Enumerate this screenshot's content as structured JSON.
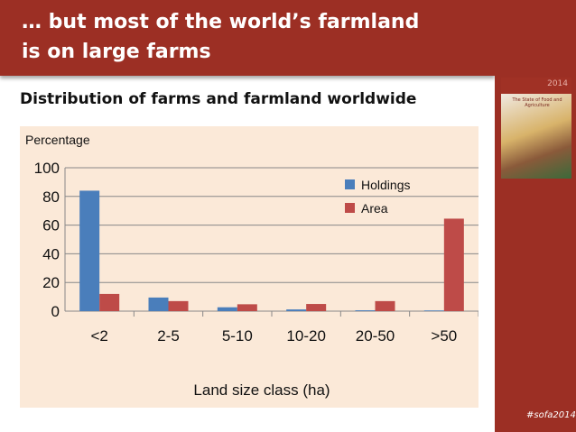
{
  "slide": {
    "title_line1": "… but most of the world’s farmland",
    "title_line2": "is on large farms",
    "subtitle": "Distribution of farms and farmland worldwide",
    "hashtag": "#sofa2014",
    "cover_year": "2014",
    "cover_title": "The State of Food and Agriculture"
  },
  "colors": {
    "header": "#9c2f24",
    "holdings": "#4a7ebb",
    "area": "#be4b48",
    "chart_bg": "#fbe9d8"
  },
  "chart_data": {
    "type": "bar",
    "title": "",
    "ylabel": "Percentage",
    "xlabel": "Land size class (ha)",
    "categories": [
      "<2",
      "2-5",
      "5-10",
      "10-20",
      "20-50",
      ">50"
    ],
    "series": [
      {
        "name": "Holdings",
        "values": [
          84,
          9.5,
          2.7,
          1.2,
          0.6,
          0.5
        ]
      },
      {
        "name": "Area",
        "values": [
          12,
          7,
          4.8,
          5,
          7,
          64.5
        ]
      }
    ],
    "ylim": [
      0,
      100
    ],
    "yticks": [
      0,
      20,
      40,
      60,
      80,
      100
    ],
    "grid": true,
    "legend": "top-right"
  }
}
